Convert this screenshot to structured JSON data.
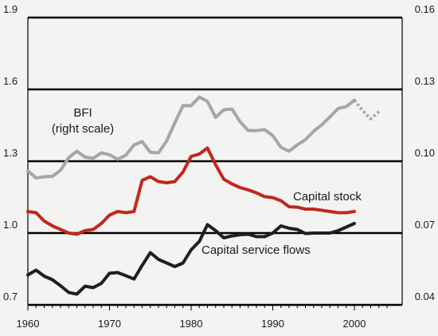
{
  "chart_data": {
    "type": "line",
    "title": "",
    "xlabel": "",
    "ylabel": "",
    "grid": true,
    "xlim": [
      1960,
      2005
    ],
    "ylim_left": [
      0.7,
      1.9
    ],
    "ylim_right": [
      0.04,
      0.16
    ],
    "x_ticks": [
      1960,
      1970,
      1980,
      1990,
      2000
    ],
    "y_ticks_left": [
      "0.7",
      "1.0",
      "1.3",
      "1.6",
      "1.9"
    ],
    "y_ticks_right": [
      "0.04",
      "0.07",
      "0.10",
      "0.13",
      "0.16"
    ],
    "colors": {
      "bfi": "#a6a6a6",
      "capital_stock": "#c0281d",
      "capital_service_flows": "#1f1f1f",
      "grid": "#000000"
    },
    "series": [
      {
        "name": "BFI",
        "label_lines": [
          "BFI",
          "(right scale)"
        ],
        "axis": "right",
        "x": [
          1960,
          1961,
          1962,
          1963,
          1964,
          1965,
          1966,
          1967,
          1968,
          1969,
          1970,
          1971,
          1972,
          1973,
          1974,
          1975,
          1976,
          1977,
          1978,
          1979,
          1980,
          1981,
          1982,
          1983,
          1984,
          1985,
          1986,
          1987,
          1988,
          1989,
          1990,
          1991,
          1992,
          1993,
          1994,
          1995,
          1996,
          1997,
          1998,
          1999,
          2000
        ],
        "values": [
          0.096,
          0.093,
          0.0935,
          0.0937,
          0.0962,
          0.1015,
          0.1042,
          0.1017,
          0.1012,
          0.1035,
          0.1027,
          0.1008,
          0.1025,
          0.1068,
          0.1082,
          0.1037,
          0.1035,
          0.1085,
          0.116,
          0.1232,
          0.1232,
          0.1268,
          0.125,
          0.1183,
          0.1215,
          0.1218,
          0.1165,
          0.1128,
          0.1128,
          0.1132,
          0.1107,
          0.1058,
          0.1042,
          0.1068,
          0.109,
          0.1125,
          0.1152,
          0.1185,
          0.122,
          0.1228,
          0.1255
        ],
        "projection": {
          "x": [
            2000,
            2001,
            2002,
            2003
          ],
          "values": [
            0.1255,
            0.1212,
            0.1177,
            0.1207
          ]
        }
      },
      {
        "name": "Capital stock",
        "axis": "left",
        "x": [
          1960,
          1961,
          1962,
          1963,
          1964,
          1965,
          1966,
          1967,
          1968,
          1969,
          1970,
          1971,
          1972,
          1973,
          1974,
          1975,
          1976,
          1977,
          1978,
          1979,
          1980,
          1981,
          1982,
          1983,
          1984,
          1985,
          1986,
          1987,
          1988,
          1989,
          1990,
          1991,
          1992,
          1993,
          1994,
          1995,
          1996,
          1997,
          1998,
          1999,
          2000
        ],
        "values": [
          1.09,
          1.085,
          1.05,
          1.03,
          1.015,
          1.0,
          0.995,
          1.01,
          1.015,
          1.04,
          1.075,
          1.09,
          1.085,
          1.09,
          1.22,
          1.235,
          1.215,
          1.21,
          1.215,
          1.255,
          1.32,
          1.33,
          1.355,
          1.285,
          1.225,
          1.205,
          1.19,
          1.18,
          1.168,
          1.152,
          1.148,
          1.135,
          1.11,
          1.108,
          1.1,
          1.1,
          1.095,
          1.09,
          1.085,
          1.085,
          1.09
        ]
      },
      {
        "name": "Capital service flows",
        "axis": "left",
        "x": [
          1960,
          1961,
          1962,
          1963,
          1964,
          1965,
          1966,
          1967,
          1968,
          1969,
          1970,
          1971,
          1972,
          1973,
          1974,
          1975,
          1976,
          1977,
          1978,
          1979,
          1980,
          1981,
          1982,
          1983,
          1984,
          1985,
          1986,
          1987,
          1988,
          1989,
          1990,
          1991,
          1992,
          1993,
          1994,
          1995,
          1996,
          1997,
          1998,
          1999,
          2000
        ],
        "values": [
          0.825,
          0.845,
          0.82,
          0.805,
          0.78,
          0.752,
          0.745,
          0.778,
          0.772,
          0.79,
          0.832,
          0.835,
          0.822,
          0.808,
          0.865,
          0.918,
          0.89,
          0.875,
          0.86,
          0.875,
          0.93,
          0.965,
          1.035,
          1.01,
          0.98,
          0.988,
          0.993,
          0.995,
          0.985,
          0.985,
          1.0,
          1.03,
          1.02,
          1.015,
          0.998,
          1.0,
          1.0,
          1.0,
          1.01,
          1.025,
          1.04
        ]
      }
    ]
  }
}
